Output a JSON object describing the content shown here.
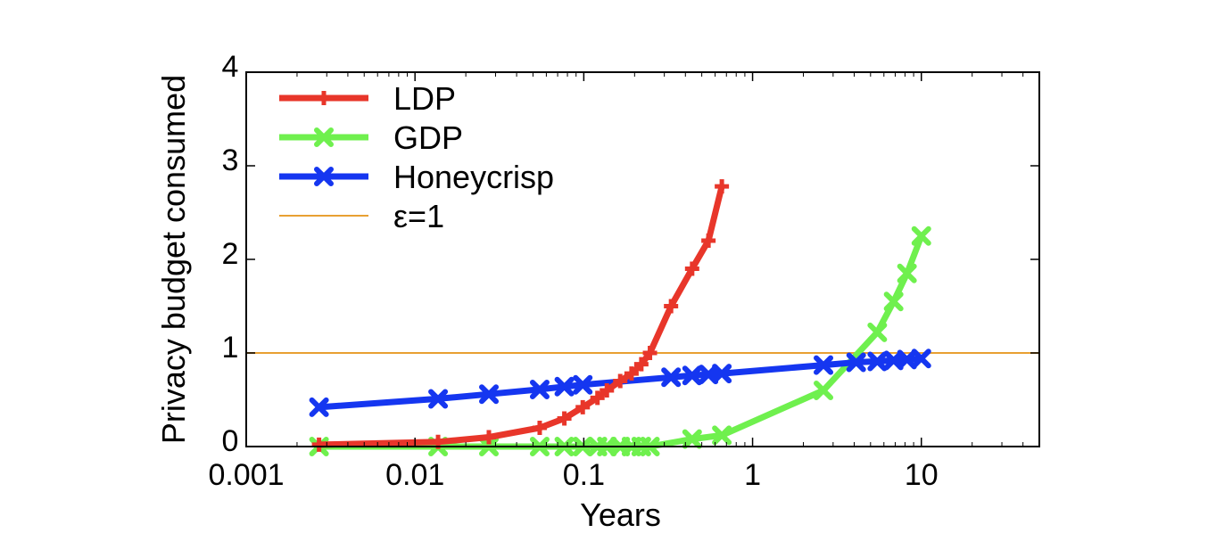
{
  "chart_data": {
    "type": "line",
    "title": "",
    "xlabel": "Years",
    "ylabel": "Privacy budget consumed",
    "xscale": "log",
    "xlim": [
      0.001,
      50
    ],
    "ylim": [
      0,
      4
    ],
    "xticks": [
      {
        "value": 0.001,
        "label": "0.001"
      },
      {
        "value": 0.01,
        "label": "0.01"
      },
      {
        "value": 0.1,
        "label": "0.1"
      },
      {
        "value": 1,
        "label": "1"
      },
      {
        "value": 10,
        "label": "10"
      }
    ],
    "yticks": [
      {
        "value": 0,
        "label": "0"
      },
      {
        "value": 1,
        "label": "1"
      },
      {
        "value": 2,
        "label": "2"
      },
      {
        "value": 3,
        "label": "3"
      },
      {
        "value": 4,
        "label": "4"
      }
    ],
    "grid": false,
    "legend_position": "top-left",
    "series": [
      {
        "name": "LDP",
        "color": "#e8362a",
        "marker": "plus",
        "x": [
          0.0027,
          0.0137,
          0.0274,
          0.0548,
          0.0767,
          0.0986,
          0.1205,
          0.137,
          0.1644,
          0.1918,
          0.2192,
          0.2466,
          0.3288,
          0.4384,
          0.5479,
          0.6575
        ],
        "y": [
          0.02,
          0.05,
          0.1,
          0.2,
          0.3,
          0.42,
          0.52,
          0.6,
          0.7,
          0.78,
          0.88,
          1.0,
          1.5,
          1.9,
          2.2,
          2.78
        ]
      },
      {
        "name": "GDP",
        "color": "#6ff04e",
        "marker": "x",
        "x": [
          0.0027,
          0.0137,
          0.0274,
          0.0548,
          0.0767,
          0.0986,
          0.1205,
          0.137,
          0.1644,
          0.1918,
          0.2192,
          0.2466,
          0.4384,
          0.6575,
          2.63,
          5.48,
          6.85,
          8.22,
          10.0
        ],
        "y": [
          0,
          0,
          0,
          0,
          0,
          0,
          0,
          0,
          0,
          0,
          0,
          0,
          0.08,
          0.12,
          0.6,
          1.22,
          1.55,
          1.85,
          2.25
        ]
      },
      {
        "name": "Honeycrisp",
        "color": "#1536f0",
        "marker": "x",
        "x": [
          0.0027,
          0.0137,
          0.0274,
          0.0548,
          0.0767,
          0.0986,
          0.3288,
          0.4384,
          0.5479,
          0.6575,
          2.63,
          4.11,
          5.48,
          6.85,
          8.22,
          10.0
        ],
        "y": [
          0.42,
          0.51,
          0.56,
          0.61,
          0.64,
          0.66,
          0.74,
          0.76,
          0.77,
          0.78,
          0.87,
          0.9,
          0.91,
          0.92,
          0.93,
          0.94
        ]
      }
    ],
    "reference_lines": [
      {
        "name": "ε=1",
        "y": 1,
        "color": "#e8a032"
      }
    ]
  }
}
